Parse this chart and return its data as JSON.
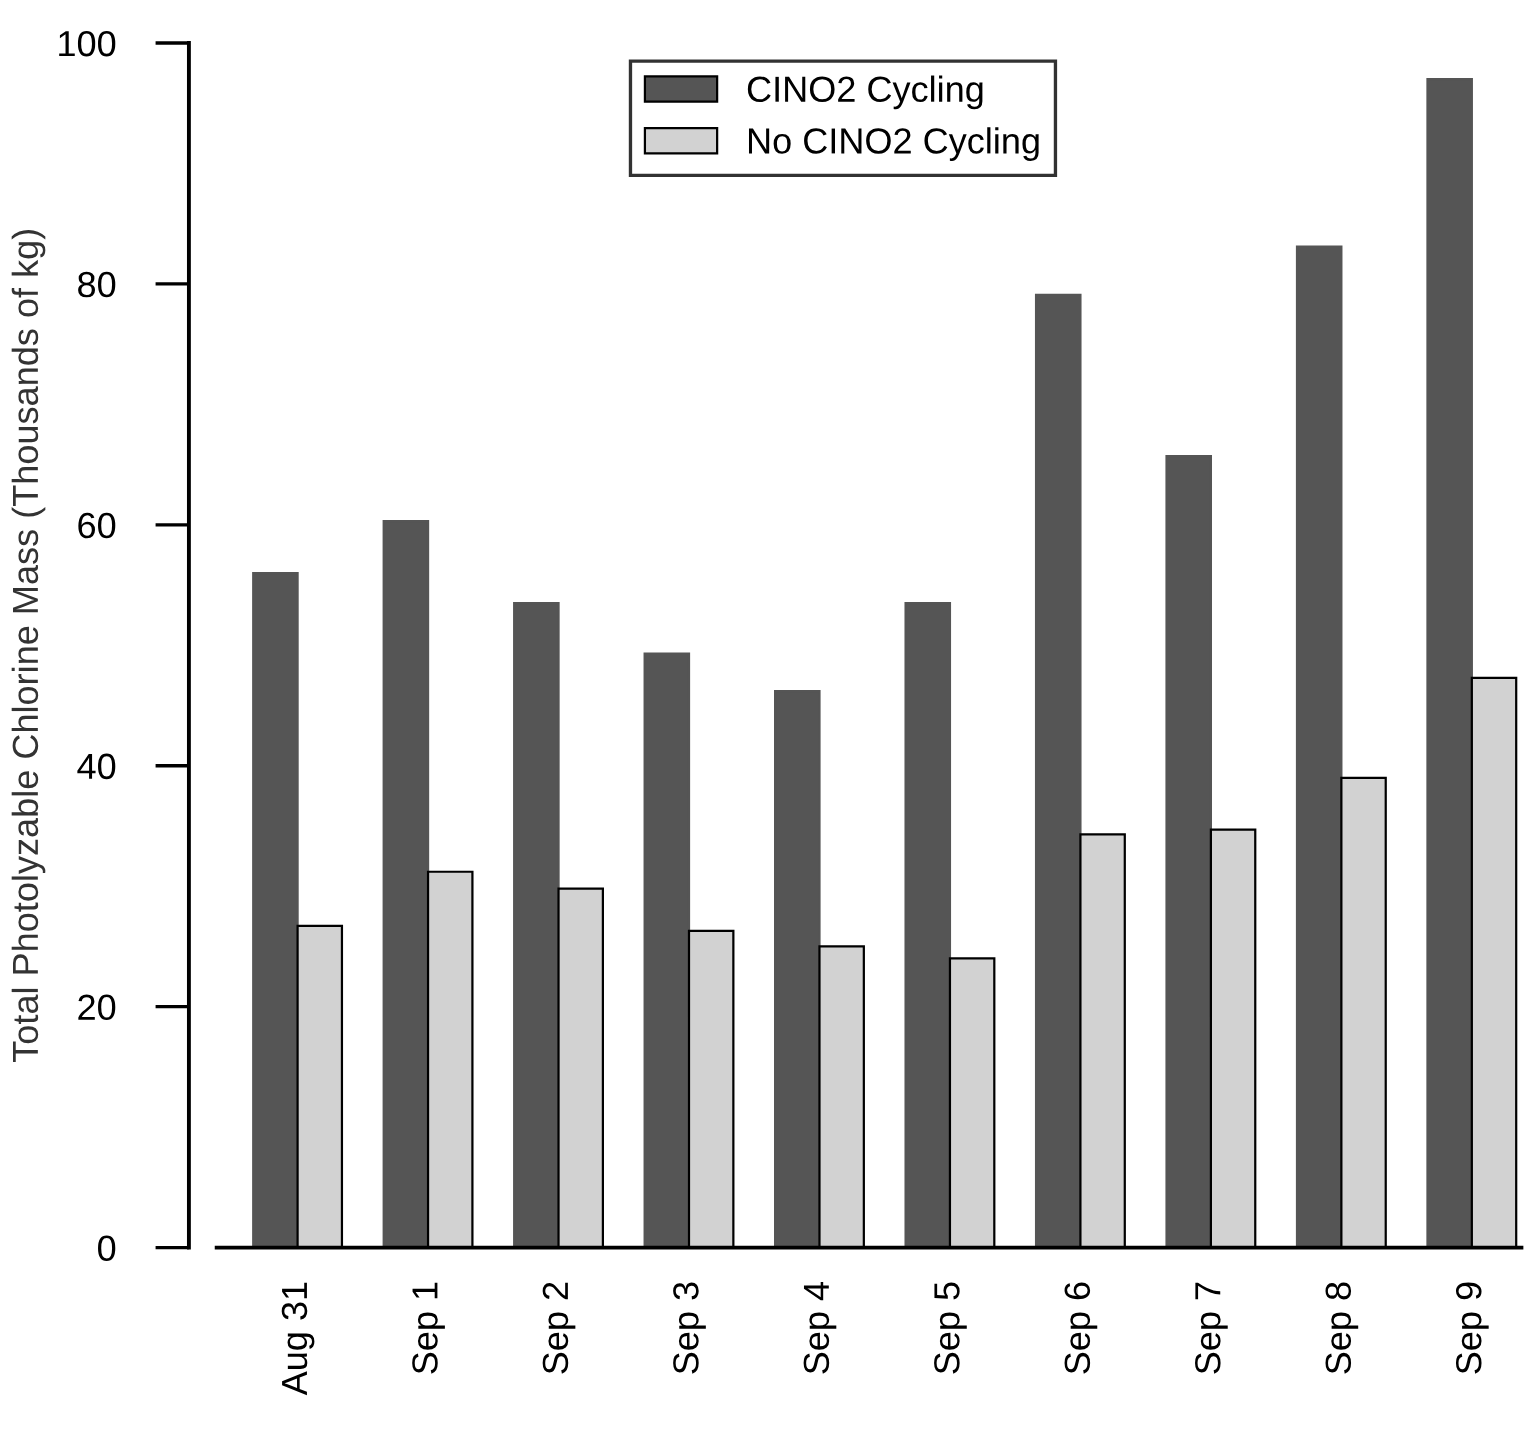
{
  "chart_data": {
    "type": "bar",
    "ylabel": "Total Photolyzable Chlorine Mass (Thousands of kg)",
    "categories": [
      "Aug 31",
      "Sep 1",
      "Sep 2",
      "Sep 3",
      "Sep 4",
      "Sep 5",
      "Sep 6",
      "Sep 7",
      "Sep 8",
      "Sep 9"
    ],
    "series": [
      {
        "name": "CINO2 Cycling",
        "color": "#555555",
        "values": [
          56,
          60.3,
          53.5,
          49.3,
          46.2,
          53.5,
          79.1,
          65.7,
          83.1,
          97.0
        ]
      },
      {
        "name": "No CINO2 Cycling",
        "color": "#d2d2d2",
        "values": [
          26.7,
          31.2,
          29.8,
          26.3,
          25.0,
          24.0,
          34.3,
          34.7,
          39.0,
          47.3
        ]
      }
    ],
    "ylim": [
      0,
      100
    ],
    "yticks": [
      0,
      20,
      40,
      60,
      80,
      100
    ],
    "grid": false,
    "legend": "top"
  }
}
